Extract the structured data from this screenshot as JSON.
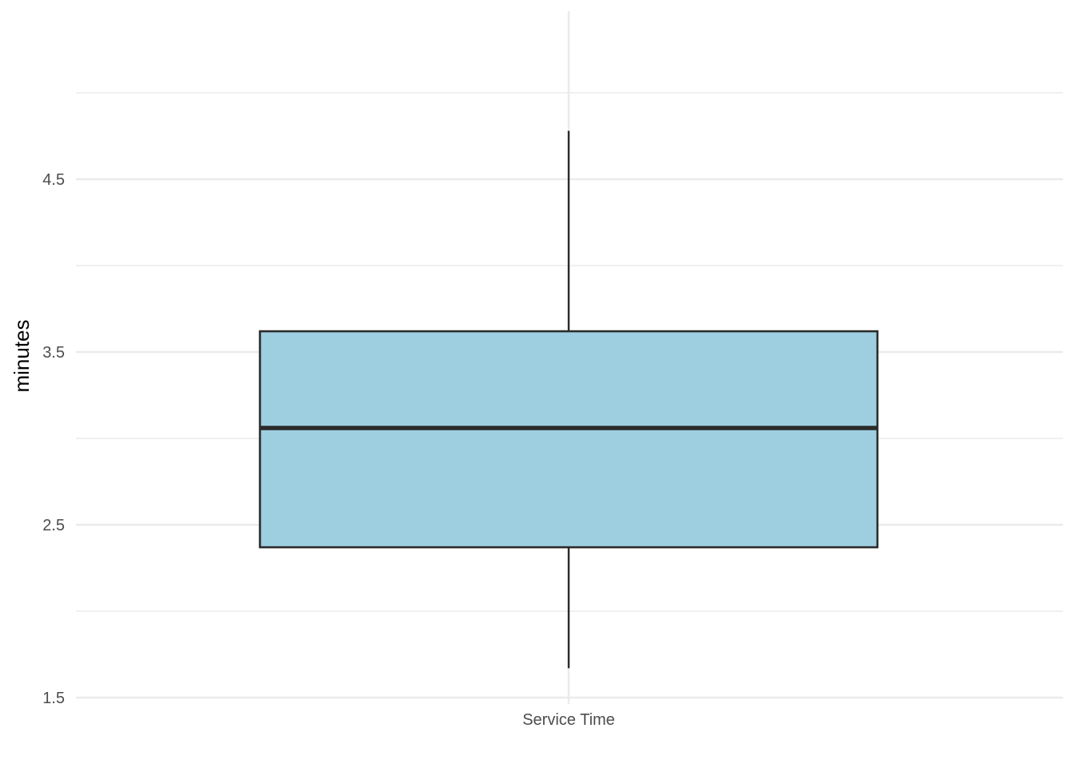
{
  "chart_data": {
    "type": "box",
    "categories": [
      "Service Time"
    ],
    "boxes": [
      {
        "category": "Service Time",
        "whisker_low": 1.67,
        "q1": 2.37,
        "median": 3.06,
        "q3": 3.62,
        "whisker_high": 4.78
      }
    ],
    "ylabel": "minutes",
    "xlabel": "",
    "title": "",
    "ylim": [
      1.5,
      5.0
    ],
    "yticks": [
      1.5,
      2.5,
      3.5,
      4.5
    ],
    "ytick_labels": [
      "1.5",
      "2.5",
      "3.5",
      "4.5"
    ],
    "minor_yticks": [
      2.0,
      3.0,
      4.0,
      5.0
    ],
    "grid": true,
    "colors": {
      "box_fill": "#9ecfe1",
      "box_stroke": "#2b2b2b",
      "grid": "#ebebeb"
    }
  }
}
